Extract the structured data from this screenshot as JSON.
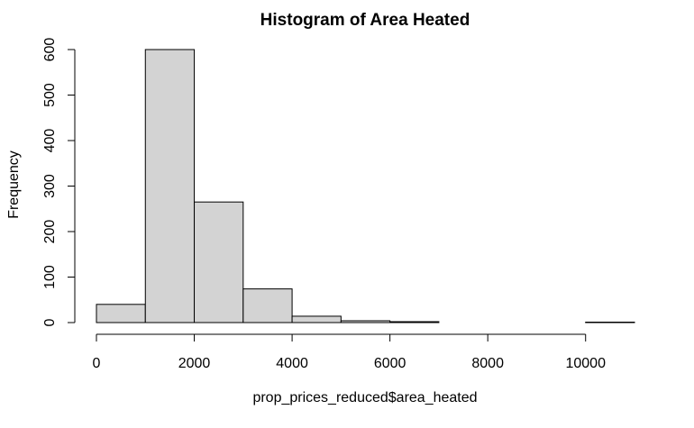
{
  "chart_data": {
    "type": "bar",
    "title": "Histogram of Area Heated",
    "xlabel": "prop_prices_reduced$area_heated",
    "ylabel": "Frequency",
    "bins": [
      {
        "start": 0,
        "end": 1000,
        "count": 40
      },
      {
        "start": 1000,
        "end": 2000,
        "count": 600
      },
      {
        "start": 2000,
        "end": 3000,
        "count": 265
      },
      {
        "start": 3000,
        "end": 4000,
        "count": 74
      },
      {
        "start": 4000,
        "end": 5000,
        "count": 14
      },
      {
        "start": 5000,
        "end": 6000,
        "count": 4
      },
      {
        "start": 6000,
        "end": 7000,
        "count": 2
      },
      {
        "start": 7000,
        "end": 8000,
        "count": 0
      },
      {
        "start": 8000,
        "end": 9000,
        "count": 0
      },
      {
        "start": 9000,
        "end": 10000,
        "count": 0
      },
      {
        "start": 10000,
        "end": 11000,
        "count": 1
      }
    ],
    "xlim": [
      0,
      11000
    ],
    "ylim": [
      0,
      600
    ],
    "x_ticks": [
      0,
      2000,
      4000,
      6000,
      8000,
      10000
    ],
    "y_ticks": [
      0,
      100,
      200,
      300,
      400,
      500,
      600
    ],
    "bar_color": "#d3d3d3",
    "grid": false,
    "legend": "none"
  }
}
